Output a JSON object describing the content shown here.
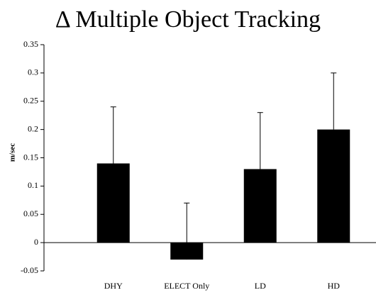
{
  "chart_data": {
    "type": "bar",
    "title": "Δ Multiple Object Tracking",
    "y_label": "m/sec",
    "categories": [
      "DHY",
      "ELECT Only",
      "LD",
      "HD"
    ],
    "values": [
      0.14,
      -0.03,
      0.13,
      0.2
    ],
    "errors": [
      0.1,
      0.1,
      0.1,
      0.1
    ],
    "color": "#000000",
    "ylim": [
      -0.05,
      0.35
    ],
    "yticks": [
      -0.05,
      0,
      0.05,
      0.1,
      0.15,
      0.2,
      0.25,
      0.3,
      0.35
    ],
    "grid": false
  }
}
